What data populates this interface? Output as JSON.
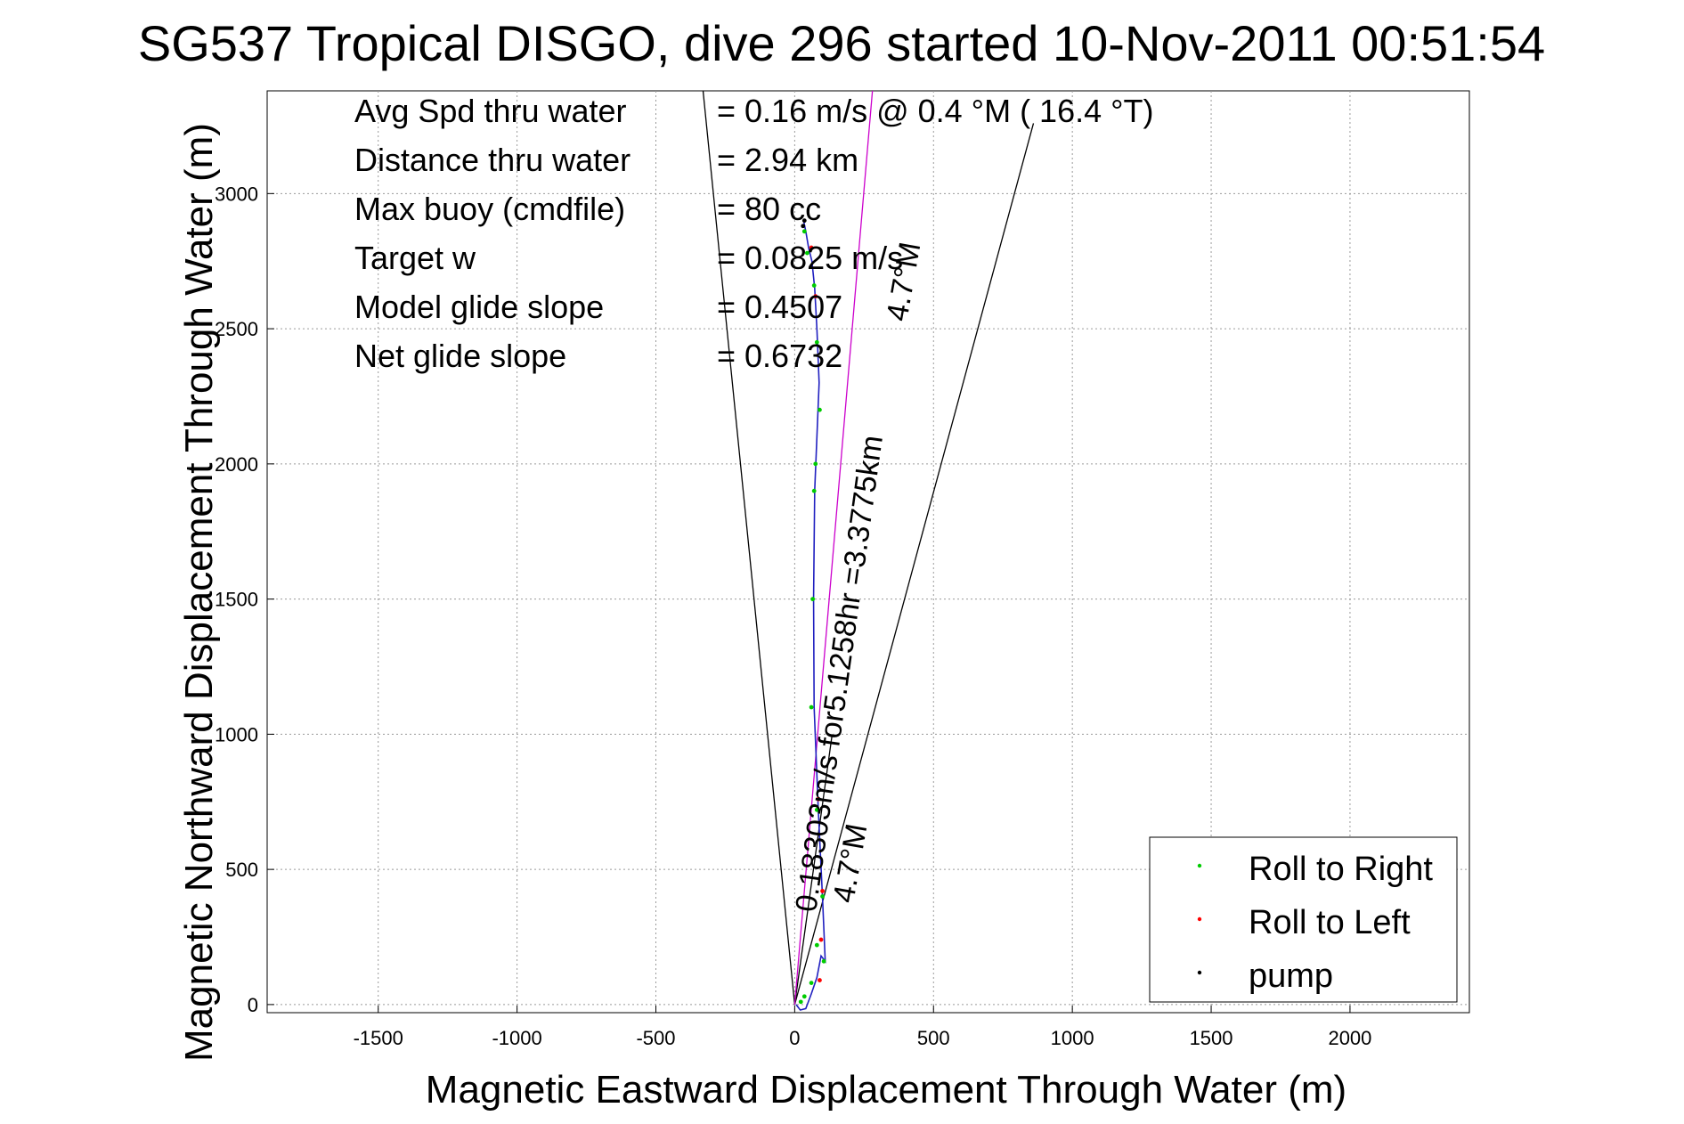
{
  "chart_data": {
    "type": "scatter",
    "title": "SG537 Tropical DISGO, dive 296 started 10-Nov-2011 00:51:54",
    "xlabel": "Magnetic Eastward Displacement Through Water (m)",
    "ylabel": "Magnetic Northward Displacement Through Water (m)",
    "xlim": [
      -1900,
      2430
    ],
    "ylim": [
      -30,
      3380
    ],
    "xticks": [
      -1500,
      -1000,
      -500,
      0,
      500,
      1000,
      1500,
      2000
    ],
    "yticks": [
      0,
      500,
      1000,
      1500,
      2000,
      2500,
      3000
    ],
    "grid": true,
    "legend_position": "bottom-right",
    "info_lines": [
      {
        "label": "Avg Spd thru water",
        "value": "=  0.16 m/s @   0.4 °M ( 16.4 °T)"
      },
      {
        "label": "Distance thru water",
        "value": "=  2.94 km"
      },
      {
        "label": "Max buoy (cmdfile)",
        "value": "= 80 cc"
      },
      {
        "label": "Target w",
        "value": "= 0.0825 m/s"
      },
      {
        "label": "Model glide slope",
        "value": "= 0.4507"
      },
      {
        "label": "Net glide slope",
        "value": "= 0.6732"
      }
    ],
    "annotations": [
      {
        "text": "0.18303m/s for5.1258hr =3.3775km",
        "x": 10,
        "y": 360
      },
      {
        "text": "4.7°M",
        "x": 120,
        "y": 420
      },
      {
        "text": "4.7°M",
        "x": 290,
        "y": 2500
      }
    ],
    "series": [
      {
        "name": "Roll to Right",
        "color": "#00cc00",
        "marker": "dot",
        "points": [
          [
            22,
            10
          ],
          [
            35,
            30
          ],
          [
            60,
            80
          ],
          [
            80,
            220
          ],
          [
            105,
            160
          ],
          [
            100,
            400
          ],
          [
            80,
            720
          ],
          [
            60,
            1100
          ],
          [
            65,
            1500
          ],
          [
            70,
            1900
          ],
          [
            75,
            2000
          ],
          [
            90,
            2200
          ],
          [
            80,
            2450
          ],
          [
            70,
            2660
          ],
          [
            45,
            2780
          ],
          [
            35,
            2860
          ]
        ]
      },
      {
        "name": "Roll to Left",
        "color": "#ff0000",
        "marker": "dot",
        "points": [
          [
            90,
            90
          ],
          [
            95,
            240
          ],
          [
            100,
            420
          ],
          [
            85,
            760
          ],
          [
            75,
            2620
          ],
          [
            60,
            2800
          ]
        ]
      },
      {
        "name": "pump",
        "color": "#000000",
        "marker": "dot",
        "points": [
          [
            30,
            2880
          ],
          [
            35,
            2900
          ]
        ]
      }
    ],
    "track": [
      [
        5,
        0
      ],
      [
        20,
        -20
      ],
      [
        40,
        -15
      ],
      [
        60,
        40
      ],
      [
        80,
        100
      ],
      [
        95,
        180
      ],
      [
        110,
        160
      ],
      [
        100,
        400
      ],
      [
        85,
        720
      ],
      [
        70,
        1100
      ],
      [
        68,
        1500
      ],
      [
        72,
        1900
      ],
      [
        80,
        2100
      ],
      [
        88,
        2300
      ],
      [
        80,
        2500
      ],
      [
        72,
        2650
      ],
      [
        62,
        2750
      ],
      [
        50,
        2800
      ],
      [
        40,
        2860
      ],
      [
        32,
        2900
      ]
    ],
    "vectors": [
      {
        "color": "#000000",
        "from": [
          0,
          0
        ],
        "to": [
          -330,
          3380
        ]
      },
      {
        "color": "#000000",
        "from": [
          0,
          0
        ],
        "to": [
          860,
          3260
        ]
      },
      {
        "color": "#000000",
        "from": [
          0,
          0
        ],
        "to": [
          135,
          1000
        ]
      },
      {
        "color": "#cc00cc",
        "from": [
          0,
          0
        ],
        "to": [
          280,
          3380
        ]
      }
    ]
  }
}
